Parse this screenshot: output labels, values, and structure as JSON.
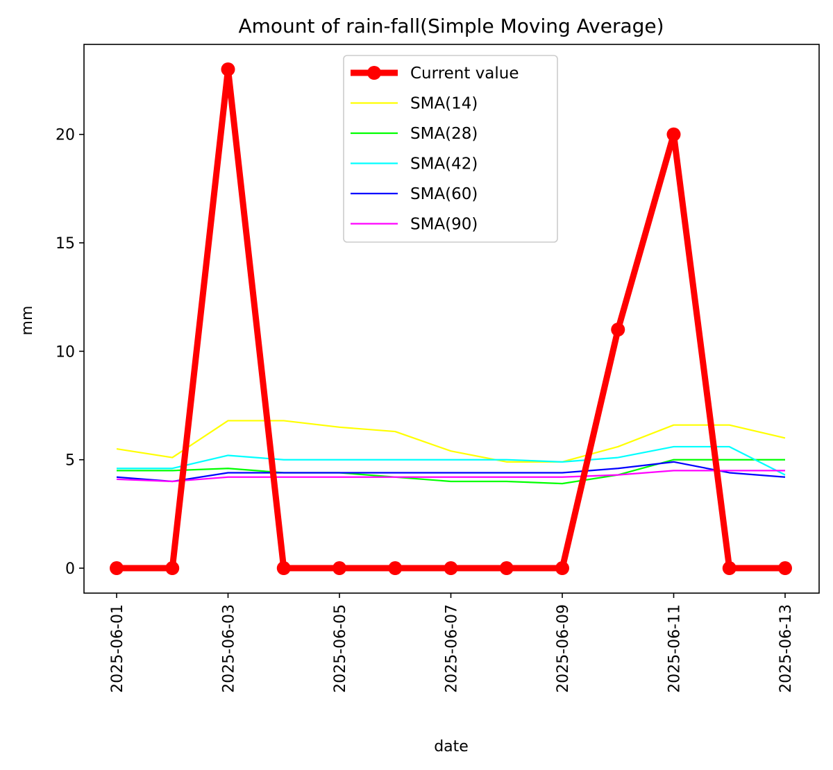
{
  "chart_data": {
    "type": "line",
    "title": "Amount of rain-fall(Simple Moving Average)",
    "xlabel": "date",
    "ylabel": "mm",
    "x": [
      "2025-06-01",
      "2025-06-02",
      "2025-06-03",
      "2025-06-04",
      "2025-06-05",
      "2025-06-06",
      "2025-06-07",
      "2025-06-08",
      "2025-06-09",
      "2025-06-10",
      "2025-06-11",
      "2025-06-12",
      "2025-06-13"
    ],
    "xticks": [
      "2025-06-01",
      "2025-06-03",
      "2025-06-05",
      "2025-06-07",
      "2025-06-09",
      "2025-06-11",
      "2025-06-13"
    ],
    "ylim": [
      -1.15,
      24.15
    ],
    "yticks": [
      0,
      5,
      10,
      15,
      20
    ],
    "grid": false,
    "legend_position": "top-center",
    "series": [
      {
        "name": "Current value",
        "color": "#ff0000",
        "marker": true,
        "thick": true,
        "values": [
          0,
          0,
          23,
          0,
          0,
          0,
          0,
          0,
          0,
          11,
          20,
          0,
          0
        ]
      },
      {
        "name": "SMA(14)",
        "color": "#ffff00",
        "values": [
          5.5,
          5.1,
          6.8,
          6.8,
          6.5,
          6.3,
          5.4,
          4.9,
          4.9,
          5.6,
          6.6,
          6.6,
          6.0
        ]
      },
      {
        "name": "SMA(28)",
        "color": "#00ff00",
        "values": [
          4.5,
          4.5,
          4.6,
          4.4,
          4.4,
          4.2,
          4.0,
          4.0,
          3.9,
          4.3,
          5.0,
          5.0,
          5.0
        ]
      },
      {
        "name": "SMA(42)",
        "color": "#00ffff",
        "values": [
          4.6,
          4.6,
          5.2,
          5.0,
          5.0,
          5.0,
          5.0,
          5.0,
          4.9,
          5.1,
          5.6,
          5.6,
          4.3
        ]
      },
      {
        "name": "SMA(60)",
        "color": "#0000ff",
        "values": [
          4.2,
          4.0,
          4.4,
          4.4,
          4.4,
          4.4,
          4.4,
          4.4,
          4.4,
          4.6,
          4.9,
          4.4,
          4.2
        ]
      },
      {
        "name": "SMA(90)",
        "color": "#ff00ff",
        "values": [
          4.1,
          4.0,
          4.2,
          4.2,
          4.2,
          4.2,
          4.2,
          4.2,
          4.2,
          4.3,
          4.5,
          4.5,
          4.5
        ]
      }
    ]
  }
}
